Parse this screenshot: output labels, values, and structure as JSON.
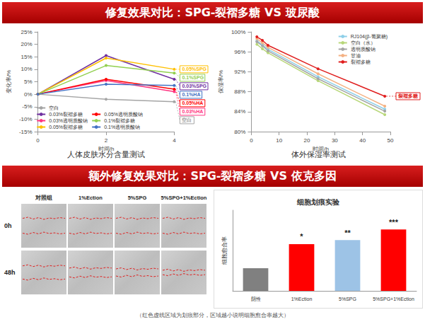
{
  "sections": [
    {
      "title": "修复效果对比：SPG-裂褶多糖 VS 玻尿酸"
    },
    {
      "title": "额外修复效果对比：SPG-裂褶多糖 VS 依克多因"
    }
  ],
  "chart_data": [
    {
      "type": "line",
      "title": "人体皮肤水分含量测试",
      "x_label": "时间/h",
      "y_label": "变化率/%",
      "x": [
        0,
        2,
        4
      ],
      "xlim": [
        0,
        4
      ],
      "xticks": [
        0,
        2,
        4
      ],
      "ylim": [
        -15,
        25
      ],
      "yticks": [
        {
          "value": -15,
          "label": "-15%"
        },
        {
          "value": -10,
          "label": "-10%"
        },
        {
          "value": -5,
          "label": "-5%"
        },
        {
          "value": 0,
          "label": "0%"
        },
        {
          "value": 5,
          "label": "5%"
        },
        {
          "value": 10,
          "label": "10%"
        },
        {
          "value": 15,
          "label": "15%"
        },
        {
          "value": 20,
          "label": "20%"
        },
        {
          "value": 25,
          "label": "25%"
        }
      ],
      "grid": false,
      "legend": "bottom-left",
      "marker": "circle",
      "series": [
        {
          "name": "空白",
          "color": "#a5a5a5",
          "values": [
            0,
            -2,
            -3
          ],
          "end_label": "空白"
        },
        {
          "name": "0.03%裂褶多糖",
          "color": "#7030a0",
          "values": [
            0,
            15.5,
            6
          ],
          "end_label": "0.03%SPG"
        },
        {
          "name": "0.03%透明质酸钠",
          "color": "#ff3380",
          "values": [
            0,
            5.5,
            1
          ],
          "end_label": "0.03%HA"
        },
        {
          "name": "0.05%裂褶多糖",
          "color": "#ffc000",
          "values": [
            0,
            14.5,
            10
          ],
          "end_label": "0.05%SPG"
        },
        {
          "name": "0.05%透明质酸钠",
          "color": "#ff0000",
          "values": [
            0,
            6,
            2
          ],
          "end_label": "0.05%HA"
        },
        {
          "name": "0.1%裂褶多糖",
          "color": "#92d050",
          "values": [
            0,
            11.5,
            8.5
          ],
          "end_label": "0.1%SPG"
        },
        {
          "name": "0.1%透明质酸钠",
          "color": "#4472c4",
          "values": [
            0,
            4,
            3.5
          ],
          "end_label": "0.1%HA"
        }
      ]
    },
    {
      "type": "line",
      "title": "体外保湿率测试",
      "x_label": "时间/h",
      "y_label": "保湿率/%",
      "x": [
        2,
        4,
        6,
        24,
        48
      ],
      "xlim": [
        0,
        50
      ],
      "xticks": [
        0,
        10,
        20,
        30,
        40,
        50
      ],
      "ylim": [
        80,
        100
      ],
      "yticks": [
        {
          "value": 80,
          "label": "80%"
        },
        {
          "value": 84,
          "label": "84%"
        },
        {
          "value": 88,
          "label": "88%"
        },
        {
          "value": 92,
          "label": "92%"
        },
        {
          "value": 96,
          "label": "96%"
        },
        {
          "value": 100,
          "label": "100%"
        }
      ],
      "grid": false,
      "legend": "top-right",
      "marker": "circle",
      "series": [
        {
          "name": "RJ104(β-葡聚糖)",
          "color": "#8ecfe8",
          "values": [
            98.2,
            97.4,
            96.5,
            91,
            84.5
          ]
        },
        {
          "name": "空白（水）",
          "color": "#b8d77a",
          "values": [
            97.5,
            96.6,
            95.8,
            90.2,
            83.4
          ]
        },
        {
          "name": "透明质酸钠",
          "color": "#a5a5a5",
          "values": [
            98,
            97.2,
            96.2,
            90.6,
            84.1
          ]
        },
        {
          "name": "甘油",
          "color": "#f4b183",
          "values": [
            98.6,
            97.8,
            96.9,
            91.6,
            85.1
          ]
        },
        {
          "name": "裂褶多糖",
          "color": "#e02020",
          "values": [
            99,
            98.3,
            97.3,
            92.6,
            87.1
          ],
          "end_label": "裂褶多糖"
        }
      ]
    },
    {
      "type": "bar",
      "title": "细胞划痕实验",
      "y_label": "细胞愈合率",
      "categories": [
        "阴性",
        "1%Ection",
        "5%SPG",
        "5%SPG+1%Ection"
      ],
      "values": [
        28,
        58,
        63,
        76
      ],
      "colors": [
        "#808080",
        "#ff0000",
        "#9dc3e6",
        "#ff0000"
      ],
      "annotations": [
        null,
        "*",
        "**",
        "***"
      ],
      "ylim": [
        0,
        100
      ],
      "tick_labels": "x",
      "grid": false
    }
  ],
  "image_grid": {
    "columns": [
      "对照组",
      "1%Ection",
      "5%SPG",
      "5%SPG+1%Ection"
    ],
    "rows": [
      "0h",
      "48h"
    ]
  },
  "footnote": "（红色虚线区域为划痕部分，区域越小说明细胞愈合率越大）"
}
